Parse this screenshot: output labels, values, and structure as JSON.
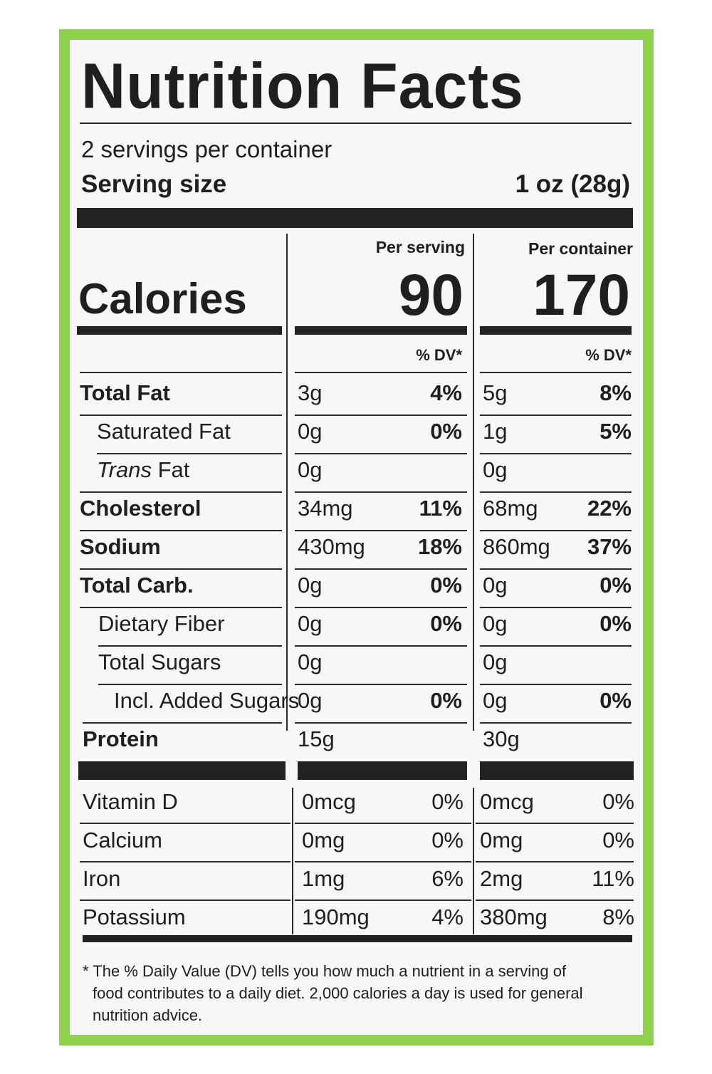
{
  "title": "Nutrition Facts",
  "servings_per_container": "2 servings per container",
  "serving_size_label": "Serving size",
  "serving_size_value": "1 oz (28g)",
  "per_serving_label": "Per serving",
  "per_container_label": "Per container",
  "calories_label": "Calories",
  "calories_per_serving": "90",
  "calories_per_container": "170",
  "dv_label": "% DV*",
  "nutrients": [
    {
      "name": "Total Fat",
      "bold": true,
      "serving_amount": "3g",
      "serving_dv": "4%",
      "container_amount": "5g",
      "container_dv": "8%"
    },
    {
      "name": "Saturated Fat",
      "serving_amount": "0g",
      "serving_dv": "0%",
      "container_amount": "1g",
      "container_dv": "5%"
    },
    {
      "name_italic": "Trans",
      "name_rest": " Fat",
      "serving_amount": "0g",
      "serving_dv": "",
      "container_amount": "0g",
      "container_dv": ""
    },
    {
      "name": "Cholesterol",
      "bold": true,
      "serving_amount": "34mg",
      "serving_dv": "11%",
      "container_amount": "68mg",
      "container_dv": "22%"
    },
    {
      "name": "Sodium",
      "bold": true,
      "serving_amount": "430mg",
      "serving_dv": "18%",
      "container_amount": "860mg",
      "container_dv": "37%"
    },
    {
      "name": "Total Carb.",
      "bold": true,
      "serving_amount": "0g",
      "serving_dv": "0%",
      "container_amount": "0g",
      "container_dv": "0%"
    },
    {
      "name": "Dietary Fiber",
      "serving_amount": "0g",
      "serving_dv": "0%",
      "container_amount": "0g",
      "container_dv": "0%"
    },
    {
      "name": "Total Sugars",
      "serving_amount": "0g",
      "serving_dv": "",
      "container_amount": "0g",
      "container_dv": ""
    },
    {
      "name": "Incl. Added Sugars",
      "serving_amount": "0g",
      "serving_dv": "0%",
      "container_amount": "0g",
      "container_dv": "0%"
    },
    {
      "name": "Protein",
      "bold": true,
      "serving_amount": "15g",
      "serving_dv": "",
      "container_amount": "30g",
      "container_dv": ""
    }
  ],
  "minerals": [
    {
      "name": "Vitamin D",
      "serving_amount": "0mcg",
      "serving_dv": "0%",
      "container_amount": "0mcg",
      "container_dv": "0%"
    },
    {
      "name": "Calcium",
      "serving_amount": "0mg",
      "serving_dv": "0%",
      "container_amount": "0mg",
      "container_dv": "0%"
    },
    {
      "name": "Iron",
      "serving_amount": "1mg",
      "serving_dv": "6%",
      "container_amount": "2mg",
      "container_dv": "11%"
    },
    {
      "name": "Potassium",
      "serving_amount": "190mg",
      "serving_dv": "4%",
      "container_amount": "380mg",
      "container_dv": "8%"
    }
  ],
  "footnote_lines": [
    "* The % Daily Value (DV) tells you how much a nutrient in a serving of",
    "food contributes to a daily diet. 2,000 calories a day is used for general",
    "nutrition advice."
  ],
  "colors": {
    "border": "#8ed14a",
    "label_bg": "#f7f6f9",
    "ink": "#1f1f1f"
  }
}
